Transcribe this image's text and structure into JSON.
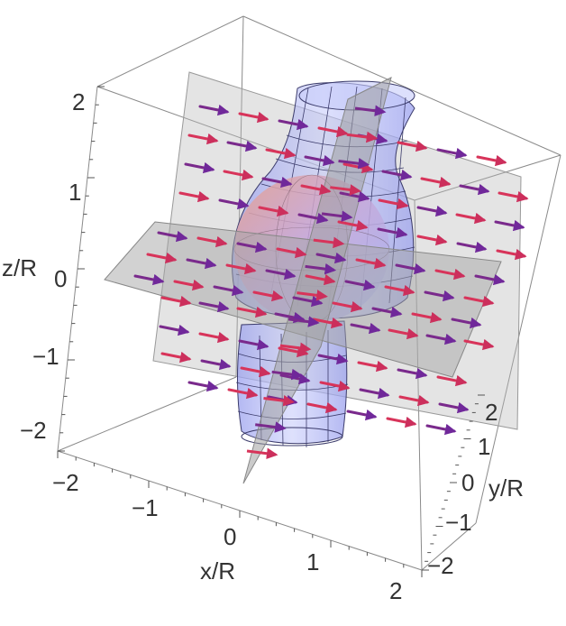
{
  "axes": {
    "x": {
      "label": "x/R",
      "ticks": [
        "−2",
        "−1",
        "0",
        "1",
        "2"
      ]
    },
    "y": {
      "label": "y/R",
      "ticks": [
        "2",
        "1",
        "0",
        "−1",
        "−2"
      ]
    },
    "z": {
      "label": "z/R",
      "ticks": [
        "2",
        "1",
        "0",
        "−1",
        "−2"
      ]
    }
  },
  "colors": {
    "surface": "#9fa6f2",
    "sphere_top": "#f0b4a0",
    "sphere_bottom": "#a6b4f4",
    "arrow_red": "#d8345a",
    "arrow_purple": "#7a2a8c",
    "plane": "#b4b4b4"
  },
  "elements": [
    "bounding-box",
    "vector-field-arrows",
    "body-of-revolution-surface",
    "sphere",
    "cut-planes"
  ]
}
